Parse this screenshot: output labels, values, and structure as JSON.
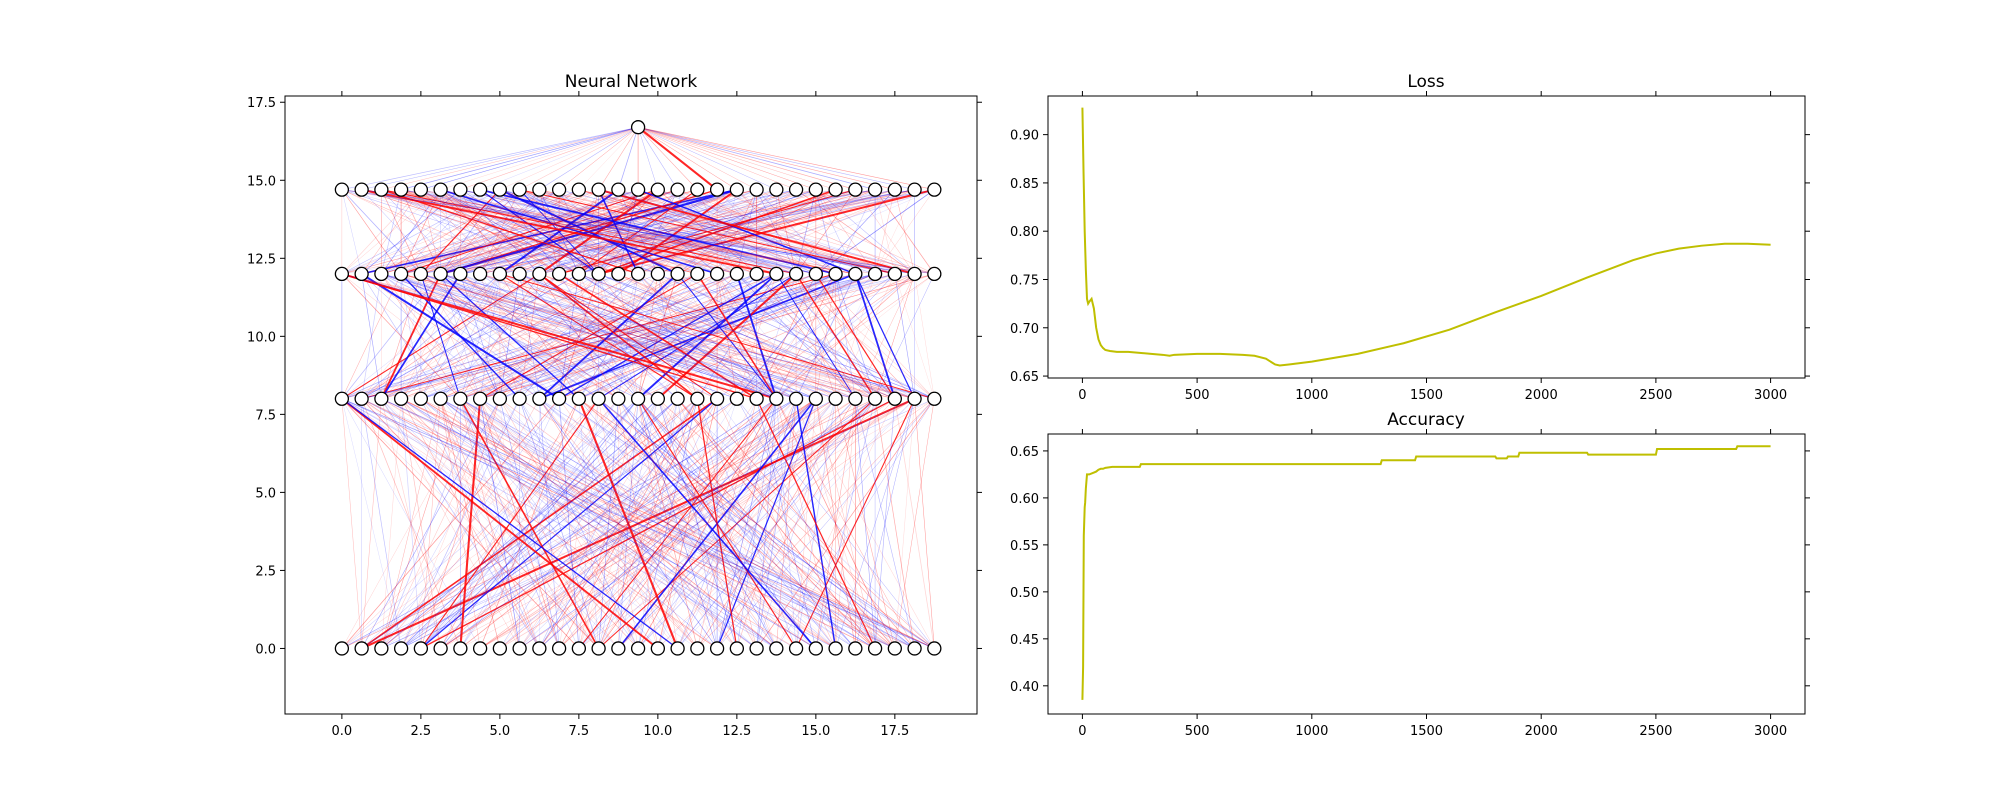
{
  "colors": {
    "positive_weight": "#ff0000",
    "negative_weight": "#0000ff",
    "curve": "#bfbf00",
    "node_fill": "#ffffff",
    "node_edge": "#000000"
  },
  "chart_data": [
    {
      "type": "network",
      "title": "Neural Network",
      "xlim": [
        -1.8,
        20.1
      ],
      "ylim": [
        -2.1,
        17.7
      ],
      "xticks": [
        0.0,
        2.5,
        5.0,
        7.5,
        10.0,
        12.5,
        15.0,
        17.5
      ],
      "xtick_labels": [
        "0.0",
        "2.5",
        "5.0",
        "7.5",
        "10.0",
        "12.5",
        "15.0",
        "17.5"
      ],
      "yticks": [
        0.0,
        2.5,
        5.0,
        7.5,
        10.0,
        12.5,
        15.0,
        17.5
      ],
      "ytick_labels": [
        "0.0",
        "2.5",
        "5.0",
        "7.5",
        "10.0",
        "12.5",
        "15.0",
        "17.5"
      ],
      "layers": [
        {
          "y": 0.0,
          "nodes": 31,
          "x_start": 0.0,
          "x_end": 18.75
        },
        {
          "y": 8.0,
          "nodes": 31,
          "x_start": 0.0,
          "x_end": 18.75
        },
        {
          "y": 12.0,
          "nodes": 31,
          "x_start": 0.0,
          "x_end": 18.75
        },
        {
          "y": 14.7,
          "nodes": 31,
          "x_start": 0.0,
          "x_end": 18.75
        },
        {
          "y": 16.7,
          "nodes": 1,
          "x_start": 9.375,
          "x_end": 9.375
        }
      ],
      "legend": "none",
      "grid": false
    },
    {
      "type": "line",
      "title": "Loss",
      "xlim": [
        -150,
        3150
      ],
      "ylim": [
        0.648,
        0.94
      ],
      "xticks": [
        0,
        500,
        1000,
        1500,
        2000,
        2500,
        3000
      ],
      "xtick_labels": [
        "0",
        "500",
        "1000",
        "1500",
        "2000",
        "2500",
        "3000"
      ],
      "yticks": [
        0.65,
        0.7,
        0.75,
        0.8,
        0.85,
        0.9
      ],
      "ytick_labels": [
        "0.65",
        "0.70",
        "0.75",
        "0.80",
        "0.85",
        "0.90"
      ],
      "x": [
        0,
        5,
        10,
        15,
        20,
        25,
        30,
        40,
        50,
        60,
        70,
        80,
        90,
        100,
        120,
        150,
        200,
        250,
        300,
        350,
        380,
        400,
        500,
        600,
        700,
        750,
        800,
        820,
        840,
        860,
        900,
        1000,
        1200,
        1400,
        1600,
        1800,
        2000,
        2200,
        2400,
        2500,
        2600,
        2700,
        2800,
        2900,
        3000
      ],
      "y": [
        0.928,
        0.86,
        0.8,
        0.76,
        0.73,
        0.725,
        0.727,
        0.73,
        0.72,
        0.7,
        0.688,
        0.682,
        0.679,
        0.677,
        0.676,
        0.675,
        0.675,
        0.674,
        0.673,
        0.672,
        0.671,
        0.672,
        0.673,
        0.673,
        0.672,
        0.671,
        0.668,
        0.665,
        0.662,
        0.661,
        0.662,
        0.665,
        0.673,
        0.684,
        0.698,
        0.716,
        0.733,
        0.752,
        0.77,
        0.777,
        0.782,
        0.785,
        0.787,
        0.787,
        0.786
      ],
      "legend": "none",
      "grid": false
    },
    {
      "type": "line",
      "title": "Accuracy",
      "xlim": [
        -150,
        3150
      ],
      "ylim": [
        0.37,
        0.668
      ],
      "xticks": [
        0,
        500,
        1000,
        1500,
        2000,
        2500,
        3000
      ],
      "xtick_labels": [
        "0",
        "500",
        "1000",
        "1500",
        "2000",
        "2500",
        "3000"
      ],
      "yticks": [
        0.4,
        0.45,
        0.5,
        0.55,
        0.6,
        0.65
      ],
      "ytick_labels": [
        "0.40",
        "0.45",
        "0.50",
        "0.55",
        "0.60",
        "0.65"
      ],
      "x": [
        0,
        3,
        6,
        10,
        12,
        15,
        20,
        25,
        30,
        50,
        60,
        70,
        80,
        90,
        100,
        130,
        200,
        250,
        255,
        600,
        1000,
        1300,
        1305,
        1450,
        1455,
        1800,
        1805,
        1850,
        1855,
        1900,
        1905,
        2200,
        2205,
        2500,
        2505,
        2850,
        2855,
        3000
      ],
      "y": [
        0.385,
        0.42,
        0.56,
        0.59,
        0.595,
        0.61,
        0.625,
        0.625,
        0.625,
        0.627,
        0.628,
        0.63,
        0.631,
        0.631,
        0.632,
        0.633,
        0.633,
        0.633,
        0.636,
        0.636,
        0.636,
        0.636,
        0.64,
        0.64,
        0.644,
        0.644,
        0.642,
        0.642,
        0.644,
        0.644,
        0.648,
        0.648,
        0.646,
        0.646,
        0.652,
        0.652,
        0.655,
        0.655
      ],
      "legend": "none",
      "grid": false
    }
  ]
}
